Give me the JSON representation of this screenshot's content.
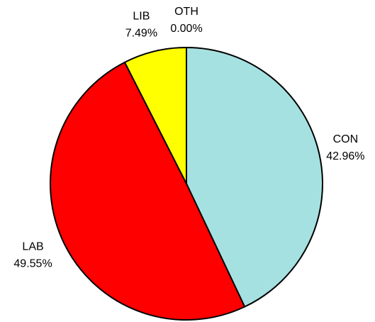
{
  "chart_data": {
    "type": "pie",
    "categories": [
      "CON",
      "LAB",
      "LIB",
      "OTH"
    ],
    "values": [
      42.96,
      49.55,
      7.49,
      0.0
    ],
    "value_labels": [
      "42.96%",
      "49.55%",
      "7.49%",
      "0.00%"
    ],
    "colors": [
      "#a6e1e1",
      "#ff0000",
      "#ffff00",
      "#808080"
    ]
  }
}
